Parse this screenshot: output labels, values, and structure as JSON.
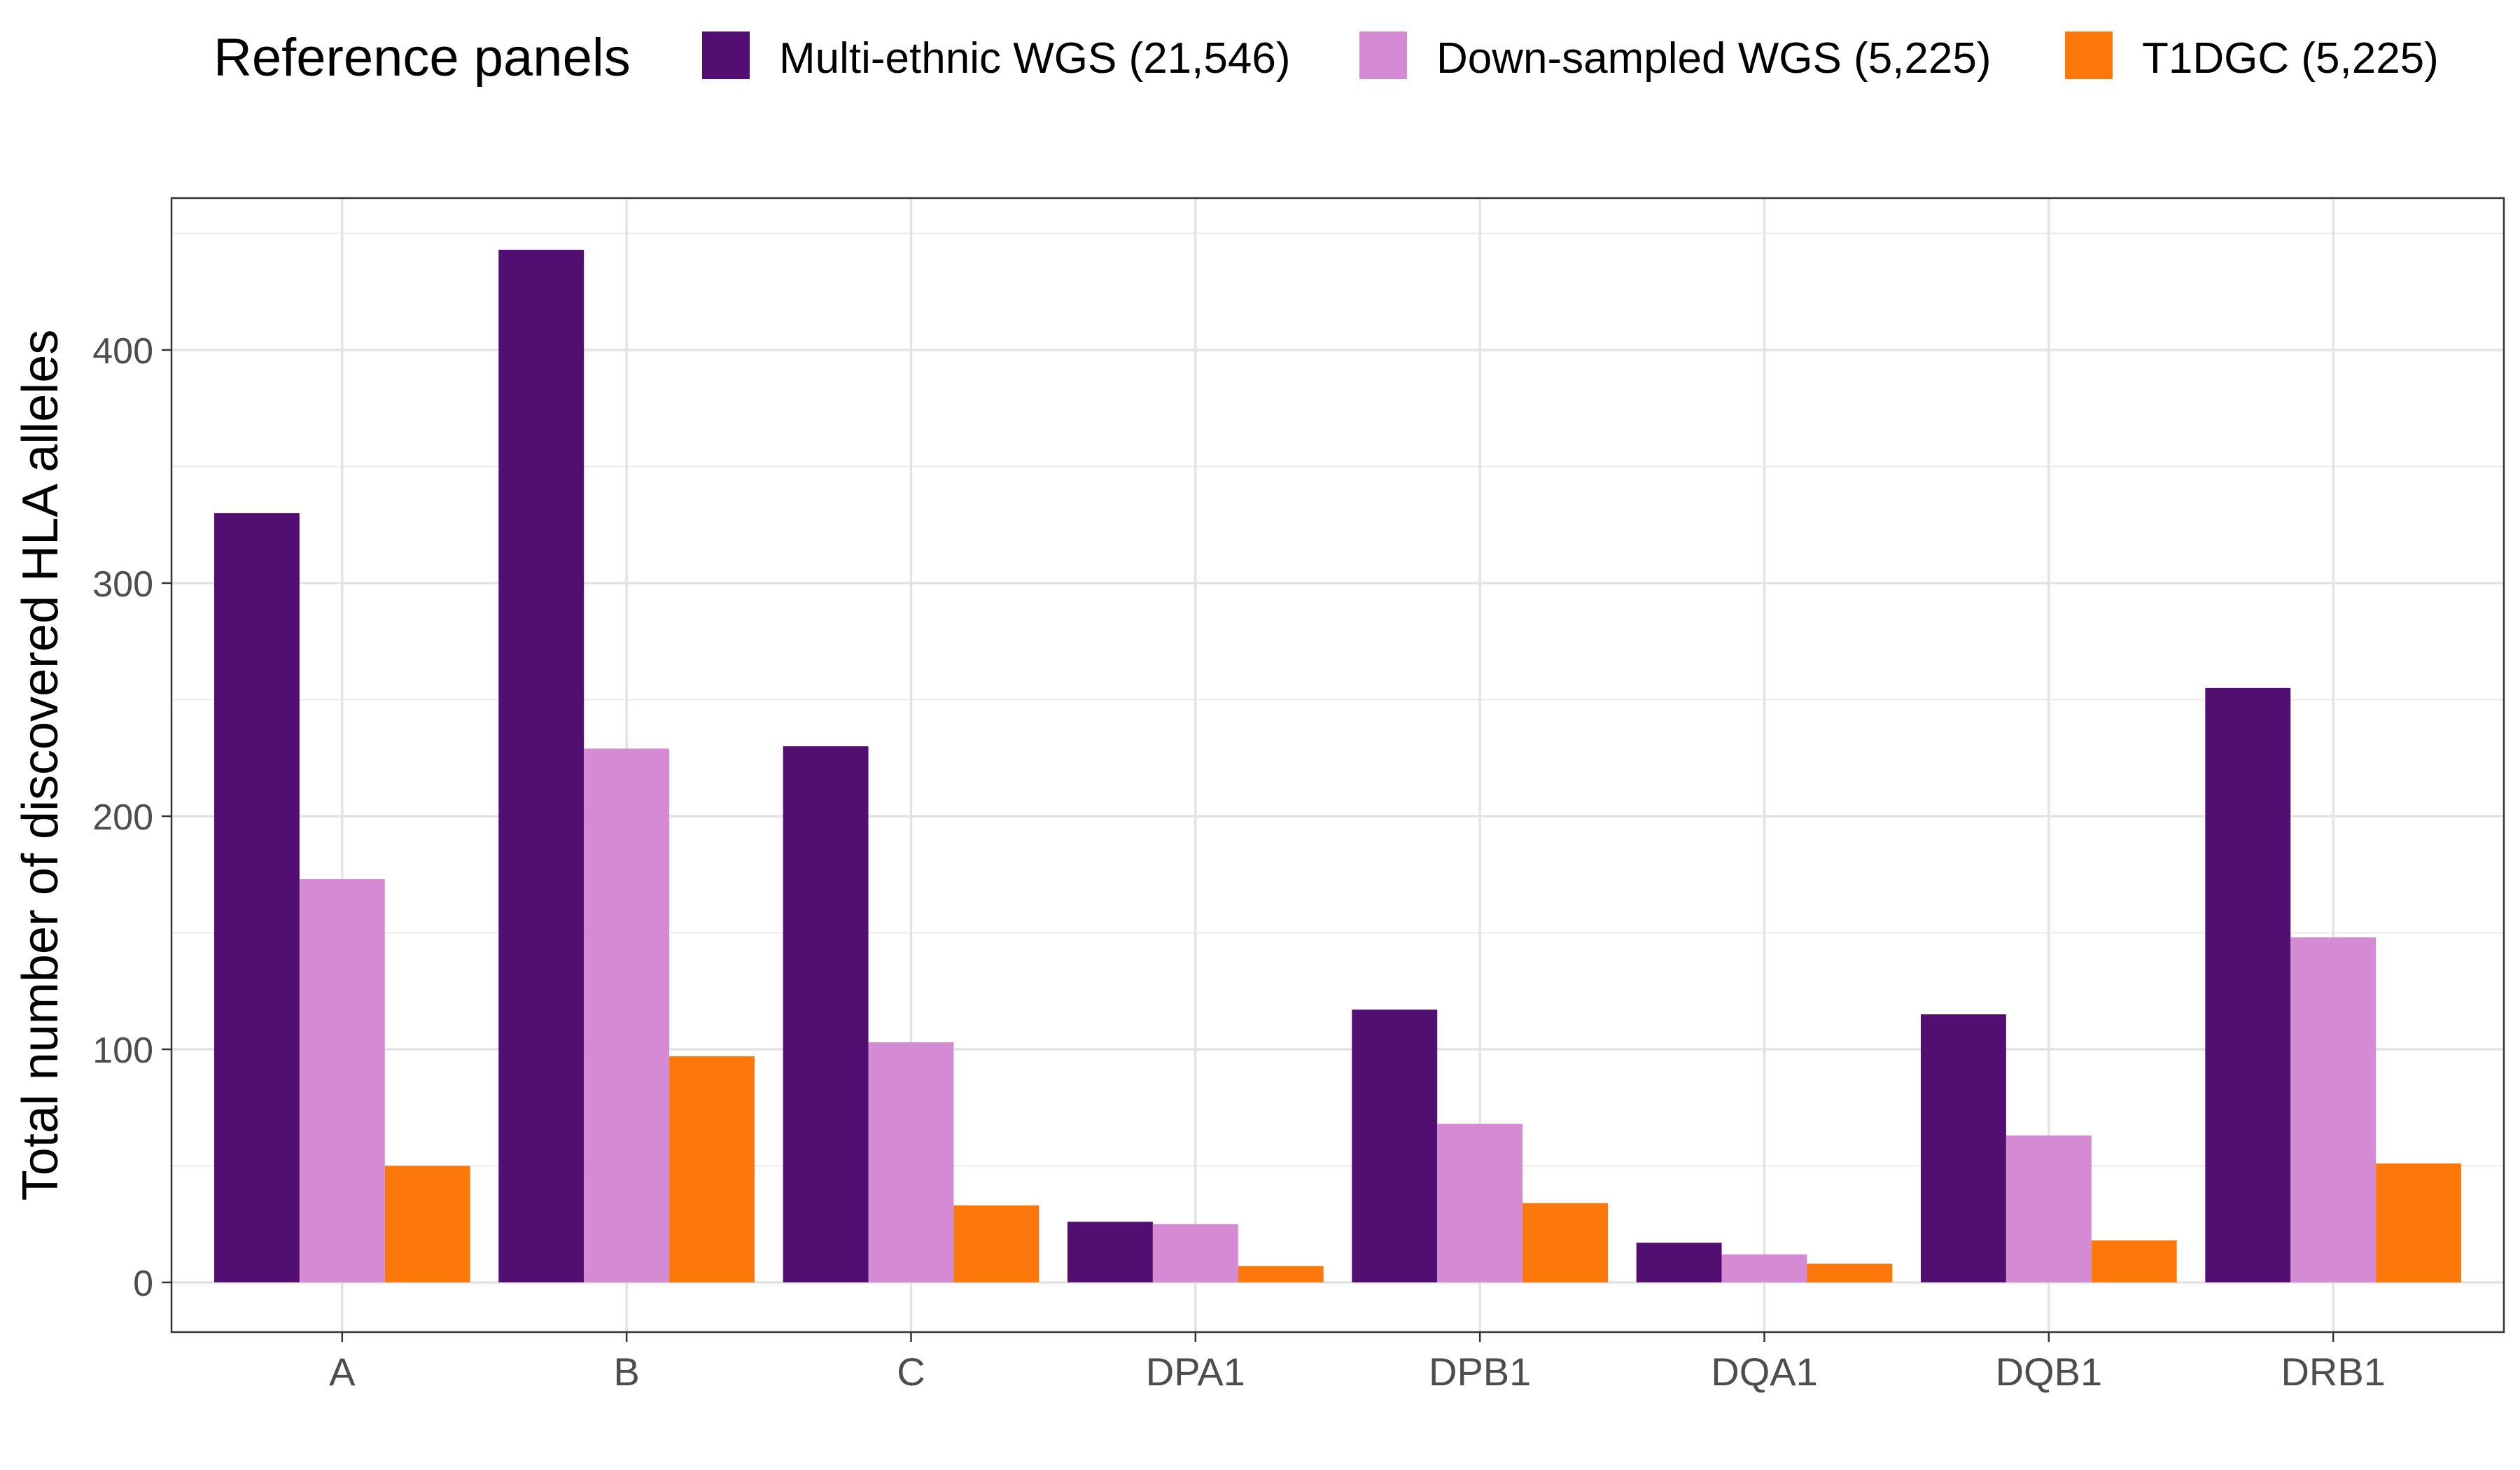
{
  "chart_data": {
    "type": "bar",
    "title": "",
    "xlabel": "",
    "ylabel": "Total number of discovered HLA alleles",
    "ylim": [
      0,
      450
    ],
    "yticks": [
      0,
      100,
      200,
      300,
      400
    ],
    "categories": [
      "A",
      "B",
      "C",
      "DPA1",
      "DPB1",
      "DQA1",
      "DQB1",
      "DRB1"
    ],
    "legend_title": "Reference panels",
    "legend_position": "top",
    "grid": true,
    "series": [
      {
        "name": "Multi-ethnic WGS (21,546)",
        "color": "#520e70",
        "values": [
          330,
          443,
          230,
          26,
          117,
          17,
          115,
          255
        ]
      },
      {
        "name": "Down-sampled WGS (5,225)",
        "color": "#d48bd4",
        "values": [
          173,
          229,
          103,
          25,
          68,
          12,
          63,
          148
        ]
      },
      {
        "name": "T1DGC (5,225)",
        "color": "#fc780a",
        "values": [
          50,
          97,
          33,
          7,
          34,
          8,
          18,
          51
        ]
      }
    ]
  }
}
